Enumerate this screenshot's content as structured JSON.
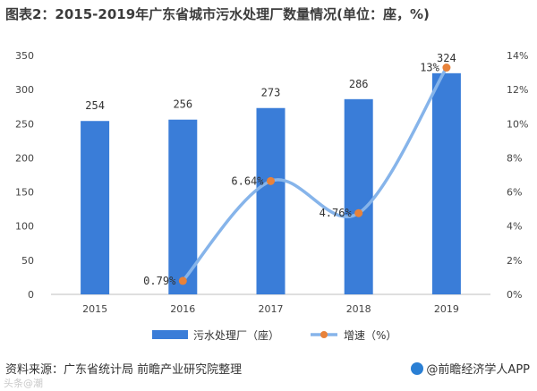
{
  "title": "图表2：2015-2019年广东省城市污水处理厂数量情况(单位：座，%)",
  "footer_source": "资料来源：广东省统计局 前瞻产业研究院整理",
  "brand": "@前瞻经济学人APP",
  "watermark": "头条@潮",
  "colors": {
    "bar": "#3a7dd8",
    "line": "#86b4ea",
    "marker": "#e8823a"
  },
  "chart_data": {
    "type": "bar",
    "categories": [
      "2015",
      "2016",
      "2017",
      "2018",
      "2019"
    ],
    "series": [
      {
        "name": "污水处理厂（座）",
        "type": "bar",
        "axis": "left",
        "values": [
          254,
          256,
          273,
          286,
          324
        ],
        "labels": [
          "254",
          "256",
          "273",
          "286",
          "324"
        ]
      },
      {
        "name": "增速（%）",
        "type": "line",
        "axis": "right",
        "values": [
          null,
          0.79,
          6.64,
          4.76,
          13.29
        ],
        "labels": [
          "",
          "0.79%",
          "6.64%",
          "4.76%",
          "13%"
        ]
      }
    ],
    "y_left": {
      "min": 0,
      "max": 350,
      "ticks": [
        "0",
        "50",
        "100",
        "150",
        "200",
        "250",
        "300",
        "350"
      ]
    },
    "y_right": {
      "min": 0,
      "max": 14,
      "ticks": [
        "0%",
        "2%",
        "4%",
        "6%",
        "8%",
        "10%",
        "12%",
        "14%"
      ]
    },
    "legend": "bottom",
    "grid": false
  }
}
